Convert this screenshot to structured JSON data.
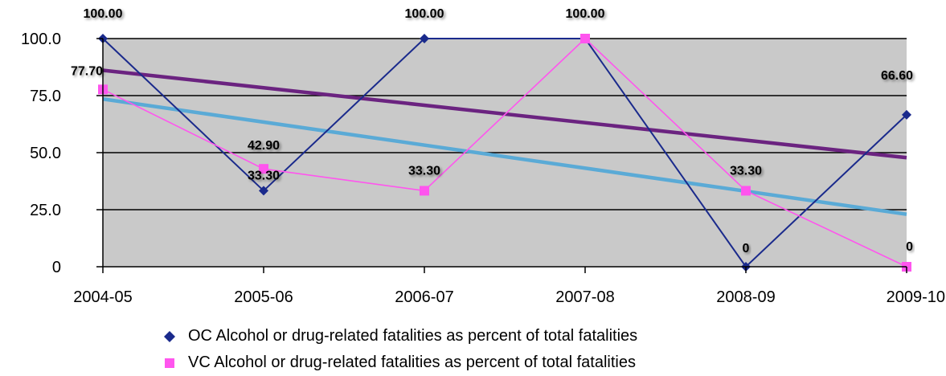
{
  "chart_data": {
    "type": "line",
    "title": "",
    "xlabel": "",
    "ylabel": "",
    "categories": [
      "2004-05",
      "2005-06",
      "2006-07",
      "2007-08",
      "2008-09",
      "2009-10"
    ],
    "ylim": [
      0,
      100
    ],
    "yticks": [
      0,
      25,
      50,
      75,
      100
    ],
    "ytick_labels": [
      "0",
      "25.0",
      "50.0",
      "75.0",
      "100.0"
    ],
    "grid": true,
    "plot_background": "#c9c9c9",
    "legend_position": "bottom",
    "series": [
      {
        "name": "OC Alcohol or drug-related fatalities as percent of total fatalities",
        "values": [
          100.0,
          33.3,
          100.0,
          100.0,
          0,
          66.6
        ],
        "data_labels": [
          "100.00",
          "33.30",
          "100.00",
          "100.00",
          "0",
          "66.60"
        ],
        "color": "#1a2a8c",
        "marker": "diamond"
      },
      {
        "name": "VC Alcohol or drug-related fatalities as percent of total fatalities",
        "values": [
          77.7,
          42.9,
          33.3,
          100.0,
          33.3,
          0
        ],
        "data_labels": [
          "77.70",
          "42.90",
          "33.30",
          "100.00",
          "33.30",
          "0"
        ],
        "color": "#ff55ee",
        "marker": "square"
      }
    ],
    "trendlines": [
      {
        "of_series": 0,
        "color": "#6b2380",
        "start": 86.1,
        "end": 47.8
      },
      {
        "of_series": 1,
        "color": "#5aaad6",
        "start": 73.5,
        "end": 23.0
      }
    ]
  }
}
